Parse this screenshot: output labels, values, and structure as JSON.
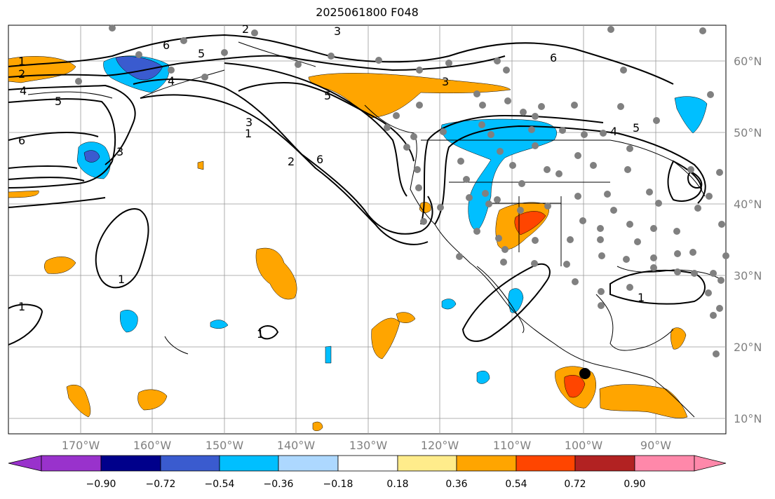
{
  "title": "2025061800 F048",
  "latitude_labels": [
    "60°N",
    "50°N",
    "40°N",
    "30°N",
    "20°N",
    "10°N"
  ],
  "longitude_labels": [
    "170°W",
    "160°W",
    "150°W",
    "140°W",
    "130°W",
    "120°W",
    "110°W",
    "100°W",
    "90°W"
  ],
  "contour_labels": [
    "1",
    "2",
    "3",
    "4",
    "5",
    "6"
  ],
  "colorbar": {
    "ticks": [
      "−0.90",
      "−0.72",
      "−0.54",
      "−0.36",
      "−0.18",
      "0.18",
      "0.36",
      "0.54",
      "0.72",
      "0.90"
    ],
    "colors": [
      "#9932cc",
      "#00008b",
      "#3a5bcf",
      "#00bfff",
      "#add8ff",
      "#ffffff",
      "#ffec8b",
      "#ffa500",
      "#ff4500",
      "#b22222",
      "#ff88aa"
    ]
  },
  "colors": {
    "background": "#ffffff",
    "gridline": "#999999",
    "axis_label": "#808080",
    "dot": "#808080"
  }
}
